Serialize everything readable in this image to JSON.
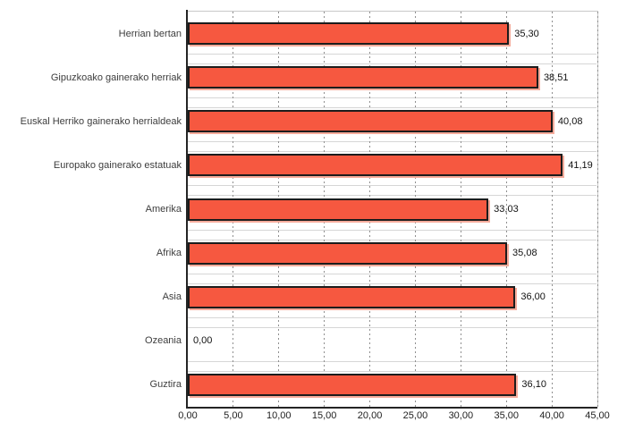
{
  "chart_data": {
    "type": "bar",
    "orientation": "horizontal",
    "title": "",
    "categories": [
      "Herrian bertan",
      "Gipuzkoako gainerako herriak",
      "Euskal Herriko gainerako herrialdeak",
      "Europako gainerako estatuak",
      "Amerika",
      "Afrika",
      "Asia",
      "Ozeania",
      "Guztira"
    ],
    "values": [
      35.3,
      38.51,
      40.08,
      41.19,
      33.03,
      35.08,
      36.0,
      0.0,
      36.1
    ],
    "value_labels": [
      "35,30",
      "38,51",
      "40,08",
      "41,19",
      "33,03",
      "35,08",
      "36,00",
      "0,00",
      "36,10"
    ],
    "xlabel": "",
    "ylabel": "",
    "xlim": [
      0,
      45
    ],
    "x_ticks": [
      0,
      5,
      10,
      15,
      20,
      25,
      30,
      35,
      40,
      45
    ],
    "x_tick_labels": [
      "0,00",
      "5,00",
      "10,00",
      "15,00",
      "20,00",
      "25,00",
      "30,00",
      "35,00",
      "40,00",
      "45,00"
    ],
    "grid": "vertical-dotted",
    "legend": "none",
    "colors": {
      "bar_fill": "#f65840",
      "bar_border": "#1c1c1c",
      "bar_shadow": "#f5ab9b",
      "axis_line": "#242424",
      "frame_line": "#c9c9c9",
      "row_line": "#d6d6d6",
      "grid_dot": "#8f8f8f",
      "category_text": "#3d3d3d",
      "value_text": "#111111",
      "tick_text": "#222222",
      "background": "#ffffff"
    }
  }
}
